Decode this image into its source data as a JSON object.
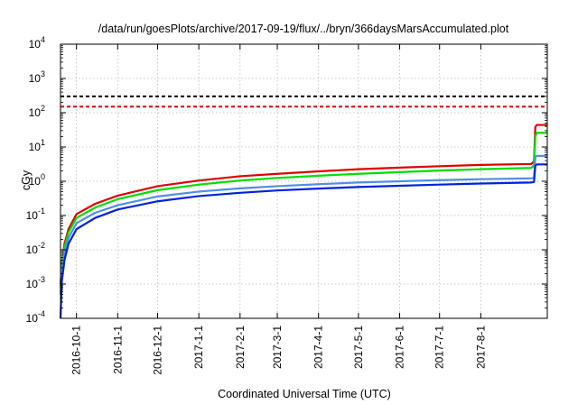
{
  "chart_data": {
    "type": "line",
    "title": "/data/run/goesPlots/archive/2017-09-19/flux/../bryn/366daysMarsAccumulated.plot",
    "xlabel": "Coordinated Universal Time (UTC)",
    "ylabel": "cGy",
    "yscale": "log",
    "ylim": [
      0.0001,
      10000
    ],
    "y_ticks": [
      {
        "value": 0.0001,
        "base": "10",
        "exp": "-4"
      },
      {
        "value": 0.001,
        "base": "10",
        "exp": "-3"
      },
      {
        "value": 0.01,
        "base": "10",
        "exp": "-2"
      },
      {
        "value": 0.1,
        "base": "10",
        "exp": "-1"
      },
      {
        "value": 1,
        "base": "10",
        "exp": "0"
      },
      {
        "value": 10,
        "base": "10",
        "exp": "1"
      },
      {
        "value": 100,
        "base": "10",
        "exp": "2"
      },
      {
        "value": 1000,
        "base": "10",
        "exp": "3"
      },
      {
        "value": 10000,
        "base": "10",
        "exp": "4"
      }
    ],
    "xlim": [
      "2016-09-19",
      "2017-09-20"
    ],
    "x_ticks": [
      "2016-10-1",
      "2016-11-1",
      "2016-12-1",
      "2017-1-1",
      "2017-2-1",
      "2017-3-1",
      "2017-4-1",
      "2017-5-1",
      "2017-6-1",
      "2017-7-1",
      "2017-8-1"
    ],
    "grid": true,
    "reference_lines": [
      {
        "value": 300,
        "color": "#000000",
        "style": "dashed"
      },
      {
        "value": 150,
        "color": "#e00000",
        "style": "dashed"
      }
    ],
    "series": [
      {
        "color": "#e00000",
        "points": [
          [
            "2016-09-19",
            0.001
          ],
          [
            "2016-09-20",
            0.004
          ],
          [
            "2016-09-22",
            0.015
          ],
          [
            "2016-09-25",
            0.04
          ],
          [
            "2016-10-01",
            0.11
          ],
          [
            "2016-10-15",
            0.22
          ],
          [
            "2016-11-01",
            0.38
          ],
          [
            "2016-12-01",
            0.72
          ],
          [
            "2017-01-01",
            1.05
          ],
          [
            "2017-02-01",
            1.4
          ],
          [
            "2017-03-01",
            1.65
          ],
          [
            "2017-04-01",
            1.95
          ],
          [
            "2017-05-01",
            2.25
          ],
          [
            "2017-06-01",
            2.5
          ],
          [
            "2017-07-01",
            2.75
          ],
          [
            "2017-08-01",
            3.0
          ],
          [
            "2017-09-08",
            3.2
          ],
          [
            "2017-09-10",
            3.8
          ],
          [
            "2017-09-11",
            38
          ],
          [
            "2017-09-12",
            44
          ],
          [
            "2017-09-20",
            44
          ]
        ]
      },
      {
        "color": "#00dd00",
        "points": [
          [
            "2016-09-19",
            0.0008
          ],
          [
            "2016-09-20",
            0.003
          ],
          [
            "2016-09-22",
            0.012
          ],
          [
            "2016-09-25",
            0.032
          ],
          [
            "2016-10-01",
            0.085
          ],
          [
            "2016-10-15",
            0.17
          ],
          [
            "2016-11-01",
            0.3
          ],
          [
            "2016-12-01",
            0.55
          ],
          [
            "2017-01-01",
            0.8
          ],
          [
            "2017-02-01",
            1.05
          ],
          [
            "2017-03-01",
            1.25
          ],
          [
            "2017-04-01",
            1.45
          ],
          [
            "2017-05-01",
            1.65
          ],
          [
            "2017-06-01",
            1.85
          ],
          [
            "2017-07-01",
            2.05
          ],
          [
            "2017-08-01",
            2.25
          ],
          [
            "2017-09-08",
            2.45
          ],
          [
            "2017-09-10",
            2.9
          ],
          [
            "2017-09-11",
            20
          ],
          [
            "2017-09-12",
            26
          ],
          [
            "2017-09-20",
            26
          ]
        ]
      },
      {
        "color": "#4f8fe6",
        "points": [
          [
            "2016-09-19",
            0.0005
          ],
          [
            "2016-09-20",
            0.002
          ],
          [
            "2016-09-22",
            0.008
          ],
          [
            "2016-09-25",
            0.022
          ],
          [
            "2016-10-01",
            0.06
          ],
          [
            "2016-10-15",
            0.12
          ],
          [
            "2016-11-01",
            0.2
          ],
          [
            "2016-12-01",
            0.36
          ],
          [
            "2017-01-01",
            0.5
          ],
          [
            "2017-02-01",
            0.62
          ],
          [
            "2017-03-01",
            0.72
          ],
          [
            "2017-04-01",
            0.82
          ],
          [
            "2017-05-01",
            0.92
          ],
          [
            "2017-06-01",
            1.0
          ],
          [
            "2017-07-01",
            1.08
          ],
          [
            "2017-08-01",
            1.15
          ],
          [
            "2017-09-08",
            1.22
          ],
          [
            "2017-09-10",
            1.25
          ],
          [
            "2017-09-11",
            5.0
          ],
          [
            "2017-09-12",
            5.5
          ],
          [
            "2017-09-20",
            5.5
          ]
        ]
      },
      {
        "color": "#0022dd",
        "points": [
          [
            "2016-09-19",
            0.0001
          ],
          [
            "2016-09-20",
            0.0012
          ],
          [
            "2016-09-22",
            0.005
          ],
          [
            "2016-09-25",
            0.015
          ],
          [
            "2016-10-01",
            0.04
          ],
          [
            "2016-10-15",
            0.085
          ],
          [
            "2016-11-01",
            0.15
          ],
          [
            "2016-12-01",
            0.26
          ],
          [
            "2017-01-01",
            0.37
          ],
          [
            "2017-02-01",
            0.46
          ],
          [
            "2017-03-01",
            0.54
          ],
          [
            "2017-04-01",
            0.61
          ],
          [
            "2017-05-01",
            0.68
          ],
          [
            "2017-06-01",
            0.74
          ],
          [
            "2017-07-01",
            0.8
          ],
          [
            "2017-08-01",
            0.86
          ],
          [
            "2017-09-08",
            0.92
          ],
          [
            "2017-09-10",
            0.95
          ],
          [
            "2017-09-11",
            2.8
          ],
          [
            "2017-09-12",
            3.1
          ],
          [
            "2017-09-20",
            3.1
          ]
        ]
      }
    ]
  }
}
